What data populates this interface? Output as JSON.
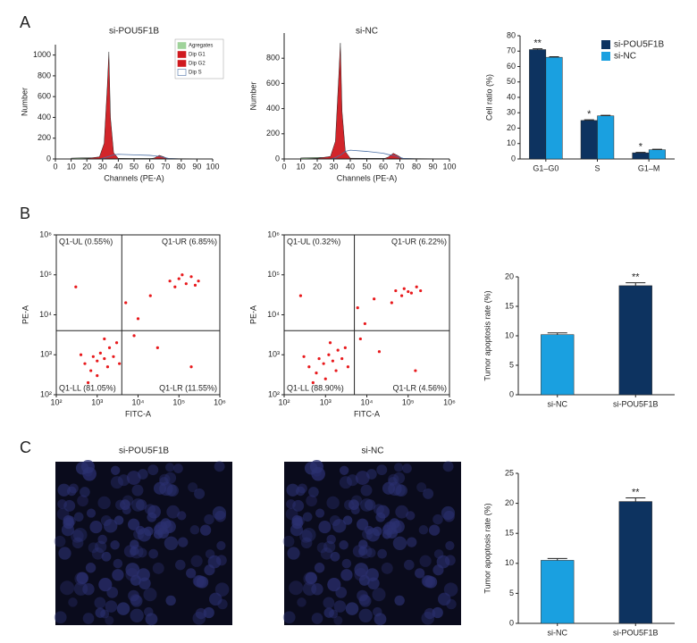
{
  "panel_labels": [
    "A",
    "B",
    "C"
  ],
  "chart_data": [
    {
      "type": "histogram",
      "title": "si-POU5F1B",
      "xlabel": "Channels (PE-A)",
      "ylabel": "Number",
      "xlim": [
        0,
        100
      ],
      "xticks": [
        0,
        10,
        20,
        30,
        40,
        50,
        60,
        70,
        80,
        90,
        100
      ],
      "ylim": [
        0,
        1100
      ],
      "yticks": [
        0,
        200,
        400,
        600,
        800,
        1000
      ],
      "x": [
        10,
        20,
        28,
        31,
        33,
        34,
        35,
        37,
        40,
        50,
        60,
        63,
        66,
        69,
        72,
        80,
        90
      ],
      "series": [
        {
          "name": "Agregates",
          "color": "#9fd39a",
          "values": [
            8,
            12,
            10,
            8,
            8,
            8,
            8,
            8,
            6,
            5,
            5,
            5,
            5,
            5,
            4,
            3,
            2
          ]
        },
        {
          "name": "Dip G1",
          "color": "#d0191f",
          "values": [
            0,
            5,
            20,
            150,
            700,
            1030,
            400,
            60,
            5,
            0,
            0,
            0,
            0,
            0,
            0,
            0,
            0
          ]
        },
        {
          "name": "Dip G2",
          "color": "#d0191f",
          "values": [
            0,
            0,
            0,
            0,
            0,
            0,
            0,
            0,
            0,
            0,
            0,
            10,
            35,
            20,
            0,
            0,
            0
          ]
        },
        {
          "name": "Dip S",
          "color": "#4a6fa5",
          "values": [
            0,
            0,
            0,
            10,
            20,
            25,
            30,
            40,
            45,
            40,
            35,
            30,
            25,
            15,
            5,
            0,
            0
          ]
        }
      ]
    },
    {
      "type": "histogram",
      "title": "si-NC",
      "xlabel": "Channels (PE-A)",
      "ylabel": "Number",
      "xlim": [
        0,
        100
      ],
      "xticks": [
        0,
        10,
        20,
        30,
        40,
        50,
        60,
        70,
        80,
        90,
        100
      ],
      "ylim": [
        0,
        1000
      ],
      "yticks": [
        0,
        200,
        400,
        600,
        800
      ],
      "x": [
        10,
        20,
        28,
        31,
        33,
        34,
        35,
        37,
        40,
        50,
        60,
        63,
        66,
        69,
        72,
        80,
        90
      ],
      "series": [
        {
          "color": "#9fd39a",
          "values": [
            8,
            12,
            10,
            8,
            8,
            8,
            8,
            8,
            6,
            5,
            5,
            5,
            5,
            5,
            4,
            3,
            2
          ]
        },
        {
          "color": "#d0191f",
          "values": [
            0,
            5,
            20,
            140,
            650,
            920,
            380,
            60,
            5,
            0,
            0,
            0,
            0,
            0,
            0,
            0,
            0
          ]
        },
        {
          "color": "#d0191f",
          "values": [
            0,
            0,
            0,
            0,
            0,
            0,
            0,
            0,
            0,
            0,
            0,
            15,
            45,
            25,
            0,
            0,
            0
          ]
        },
        {
          "color": "#4a6fa5",
          "values": [
            0,
            0,
            0,
            10,
            25,
            30,
            40,
            60,
            70,
            60,
            45,
            35,
            28,
            15,
            5,
            0,
            0
          ]
        }
      ]
    },
    {
      "type": "bar",
      "ylabel": "Cell ratio (%)",
      "categories": [
        "G1–G0",
        "S",
        "G1–M"
      ],
      "ylim": [
        0,
        80
      ],
      "yticks": [
        0,
        10,
        20,
        30,
        40,
        50,
        60,
        70,
        80
      ],
      "series": [
        {
          "name": "si-POU5F1B",
          "color": "#0d3360",
          "values": [
            71,
            25,
            4
          ],
          "errors": [
            0.5,
            0.4,
            0.3
          ],
          "significance": [
            "**",
            "*",
            "*"
          ]
        },
        {
          "name": "si-NC",
          "color": "#1aa0e0",
          "values": [
            66,
            28,
            6
          ],
          "errors": [
            0.4,
            0.3,
            0.3
          ]
        }
      ]
    },
    {
      "type": "scatter",
      "xlabel": "FITC-A",
      "ylabel": "PE-A",
      "log_scale": true,
      "color": "#e8191c",
      "xlim": [
        100,
        1000000
      ],
      "xticks": [
        {
          "value": 100,
          "label": "10²"
        },
        {
          "value": 1000,
          "label": "10³"
        },
        {
          "value": 10000,
          "label": "10⁴"
        },
        {
          "value": 100000,
          "label": "10⁵"
        },
        {
          "value": 1000000,
          "label": "10⁶"
        }
      ],
      "ylim": [
        100,
        1000000
      ],
      "yticks": [
        {
          "value": 100,
          "label": "10²"
        },
        {
          "value": 1000,
          "label": "10³"
        },
        {
          "value": 10000,
          "label": "10⁴"
        },
        {
          "value": 100000,
          "label": "10⁵"
        },
        {
          "value": 1000000,
          "label": "10⁶"
        }
      ],
      "gates": {
        "x": 4000,
        "y": 4000
      },
      "quadrant_labels": [
        {
          "text": "Q1-UL (0.55%)",
          "corner": "top-left",
          "color": "#7cb342"
        },
        {
          "text": "Q1-UR (6.85%)",
          "corner": "top-right",
          "color": "#d32f2f"
        },
        {
          "text": "Q1-LL (81.05%)",
          "corner": "bottom-left",
          "color": "#1e3a6e"
        },
        {
          "text": "Q1-LR (11.55%)",
          "corner": "bottom-right",
          "color": "#a040a0"
        }
      ],
      "x": [
        500,
        800,
        1000,
        1200,
        1500,
        2000,
        700,
        1000,
        2500,
        3000,
        1500,
        400,
        600,
        3500,
        1800,
        60000,
        100000,
        150000,
        200000,
        300000,
        80000,
        250000,
        120000,
        20000,
        10000,
        5000,
        300,
        30000,
        200000,
        8000
      ],
      "values": [
        600,
        900,
        700,
        1100,
        800,
        1500,
        400,
        300,
        900,
        2000,
        2500,
        1000,
        200,
        600,
        500,
        70000,
        80000,
        60000,
        90000,
        70000,
        50000,
        55000,
        100000,
        30000,
        8000,
        20000,
        50000,
        1500,
        500,
        3000
      ]
    },
    {
      "type": "scatter",
      "xlabel": "FITC-A",
      "ylabel": "PE-A",
      "log_scale": true,
      "color": "#e8191c",
      "xlim": [
        100,
        1000000
      ],
      "xticks": [
        {
          "value": 100,
          "label": "10²"
        },
        {
          "value": 1000,
          "label": "10³"
        },
        {
          "value": 10000,
          "label": "10⁴"
        },
        {
          "value": 100000,
          "label": "10⁵"
        },
        {
          "value": 1000000,
          "label": "10⁶"
        }
      ],
      "ylim": [
        100,
        1000000
      ],
      "yticks": [
        {
          "value": 100,
          "label": "10²"
        },
        {
          "value": 1000,
          "label": "10³"
        },
        {
          "value": 10000,
          "label": "10⁴"
        },
        {
          "value": 100000,
          "label": "10⁵"
        },
        {
          "value": 1000000,
          "label": "10⁶"
        }
      ],
      "gates": {
        "x": 5000,
        "y": 4000
      },
      "quadrant_labels": [
        {
          "text": "Q1-UL (0.32%)",
          "corner": "top-left",
          "color": "#7cb342"
        },
        {
          "text": "Q1-UR (6.22%)",
          "corner": "top-right",
          "color": "#d32f2f"
        },
        {
          "text": "Q1-LL (88.90%)",
          "corner": "bottom-left",
          "color": "#1e3a6e"
        },
        {
          "text": "Q1-LR (4.56%)",
          "corner": "bottom-right",
          "color": "#a040a0"
        }
      ],
      "x": [
        400,
        700,
        900,
        1200,
        1500,
        2000,
        600,
        1000,
        2500,
        3000,
        1300,
        300,
        500,
        3500,
        1800,
        50000,
        80000,
        120000,
        160000,
        200000,
        70000,
        100000,
        40000,
        15000,
        9000,
        6000,
        250,
        20000,
        150000,
        7000
      ],
      "values": [
        500,
        800,
        600,
        1000,
        700,
        1300,
        350,
        250,
        800,
        1500,
        2000,
        900,
        200,
        500,
        400,
        40000,
        45000,
        35000,
        50000,
        40000,
        30000,
        38000,
        20000,
        25000,
        6000,
        15000,
        30000,
        1200,
        400,
        2500
      ]
    },
    {
      "type": "bar",
      "ylabel": "Tumor apoptosis rate (%)",
      "categories": [
        "si-NC",
        "si-POU5F1B"
      ],
      "colors": [
        "#1aa0e0",
        "#0d3360"
      ],
      "ylim": [
        0,
        20
      ],
      "yticks": [
        0,
        5,
        10,
        15,
        20
      ],
      "values": [
        10.2,
        18.5
      ],
      "errors": [
        0.3,
        0.5
      ],
      "significance": [
        null,
        "**"
      ]
    },
    {
      "type": "image",
      "title": "si-POU5F1B"
    },
    {
      "type": "image",
      "title": "si-NC"
    },
    {
      "type": "bar",
      "ylabel": "Tumor apoptosis rate (%)",
      "categories": [
        "si-NC",
        "si-POU5F1B"
      ],
      "colors": [
        "#1aa0e0",
        "#0d3360"
      ],
      "ylim": [
        0,
        25
      ],
      "yticks": [
        0,
        5,
        10,
        15,
        20,
        25
      ],
      "values": [
        10.5,
        20.3
      ],
      "errors": [
        0.3,
        0.6
      ],
      "significance": [
        null,
        "**"
      ]
    }
  ]
}
